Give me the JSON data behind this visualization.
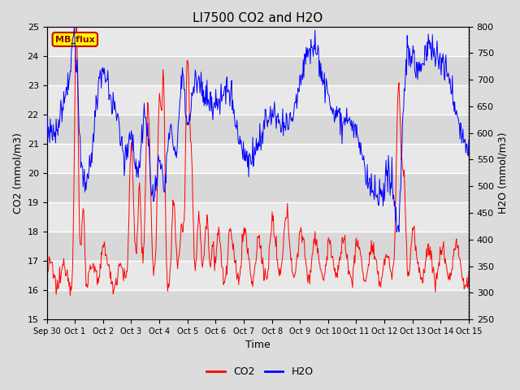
{
  "title": "LI7500 CO2 and H2O",
  "xlabel": "Time",
  "ylabel_left": "CO2 (mmol/m3)",
  "ylabel_right": "H2O (mmol/m3)",
  "co2_ylim": [
    15.0,
    25.0
  ],
  "h2o_ylim": [
    250,
    800
  ],
  "co2_color": "#ff0000",
  "h2o_color": "#0000ff",
  "annotation_text": "MB_flux",
  "annotation_bg": "#ffff00",
  "annotation_border": "#cc0000",
  "x_tick_labels": [
    "Sep 30",
    "Oct 1",
    "Oct 2",
    "Oct 3",
    "Oct 4",
    "Oct 5",
    "Oct 6",
    "Oct 7",
    "Oct 8",
    "Oct 9",
    "Oct 10",
    "Oct 11",
    "Oct 12",
    "Oct 13",
    "Oct 14",
    "Oct 15"
  ],
  "x_tick_positions": [
    0,
    1,
    2,
    3,
    4,
    5,
    6,
    7,
    8,
    9,
    10,
    11,
    12,
    13,
    14,
    15
  ],
  "bg_color": "#dcdcdc",
  "plot_bg_light": "#e8e8e8",
  "plot_bg_dark": "#d0d0d0",
  "grid_color": "#ffffff",
  "co2_yticks": [
    15.0,
    16.0,
    17.0,
    18.0,
    19.0,
    20.0,
    21.0,
    22.0,
    23.0,
    24.0,
    25.0
  ],
  "h2o_yticks": [
    250,
    300,
    350,
    400,
    450,
    500,
    550,
    600,
    650,
    700,
    750,
    800
  ],
  "figsize": [
    6.4,
    4.8
  ],
  "dpi": 100
}
